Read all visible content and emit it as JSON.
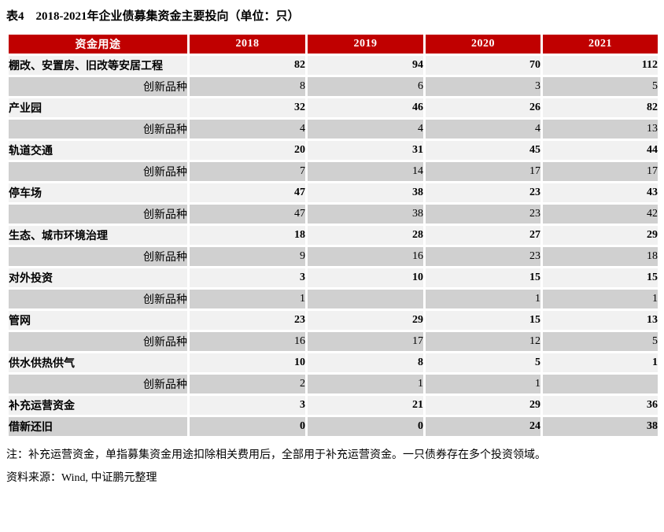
{
  "title": "表4　2018-2021年企业债募集资金主要投向（单位：只）",
  "colors": {
    "header_bg": "#c00000",
    "header_text": "#ffffff",
    "row_light": "#f1f1f1",
    "row_dark": "#d0d0d0"
  },
  "table": {
    "columns": [
      "资金用途",
      "2018",
      "2019",
      "2020",
      "2021"
    ],
    "rows": [
      {
        "label": "棚改、安置房、旧改等安居工程",
        "type": "main",
        "values": [
          "82",
          "94",
          "70",
          "112"
        ]
      },
      {
        "label": "创新品种",
        "type": "sub",
        "values": [
          "8",
          "6",
          "3",
          "5"
        ]
      },
      {
        "label": "产业园",
        "type": "main",
        "values": [
          "32",
          "46",
          "26",
          "82"
        ]
      },
      {
        "label": "创新品种",
        "type": "sub",
        "values": [
          "4",
          "4",
          "4",
          "13"
        ]
      },
      {
        "label": "轨道交通",
        "type": "main",
        "values": [
          "20",
          "31",
          "45",
          "44"
        ]
      },
      {
        "label": "创新品种",
        "type": "sub",
        "values": [
          "7",
          "14",
          "17",
          "17"
        ]
      },
      {
        "label": "停车场",
        "type": "main",
        "values": [
          "47",
          "38",
          "23",
          "43"
        ]
      },
      {
        "label": "创新品种",
        "type": "sub",
        "values": [
          "47",
          "38",
          "23",
          "42"
        ]
      },
      {
        "label": "生态、城市环境治理",
        "type": "main",
        "values": [
          "18",
          "28",
          "27",
          "29"
        ]
      },
      {
        "label": "创新品种",
        "type": "sub",
        "values": [
          "9",
          "16",
          "23",
          "18"
        ]
      },
      {
        "label": "对外投资",
        "type": "main",
        "values": [
          "3",
          "10",
          "15",
          "15"
        ]
      },
      {
        "label": "创新品种",
        "type": "sub",
        "values": [
          "1",
          "",
          "1",
          "1"
        ]
      },
      {
        "label": "管网",
        "type": "main",
        "values": [
          "23",
          "29",
          "15",
          "13"
        ]
      },
      {
        "label": "创新品种",
        "type": "sub",
        "values": [
          "16",
          "17",
          "12",
          "5"
        ]
      },
      {
        "label": "供水供热供气",
        "type": "main",
        "values": [
          "10",
          "8",
          "5",
          "1"
        ]
      },
      {
        "label": "创新品种",
        "type": "sub",
        "values": [
          "2",
          "1",
          "1",
          ""
        ]
      },
      {
        "label": "补充运营资金",
        "type": "main",
        "values": [
          "3",
          "21",
          "29",
          "36"
        ]
      },
      {
        "label": "借新还旧",
        "type": "main",
        "values": [
          "0",
          "0",
          "24",
          "38"
        ]
      }
    ]
  },
  "note": "注：补充运营资金，单指募集资金用途扣除相关费用后，全部用于补充运营资金。一只债券存在多个投资领域。",
  "source": "资料来源：Wind, 中证鹏元整理"
}
